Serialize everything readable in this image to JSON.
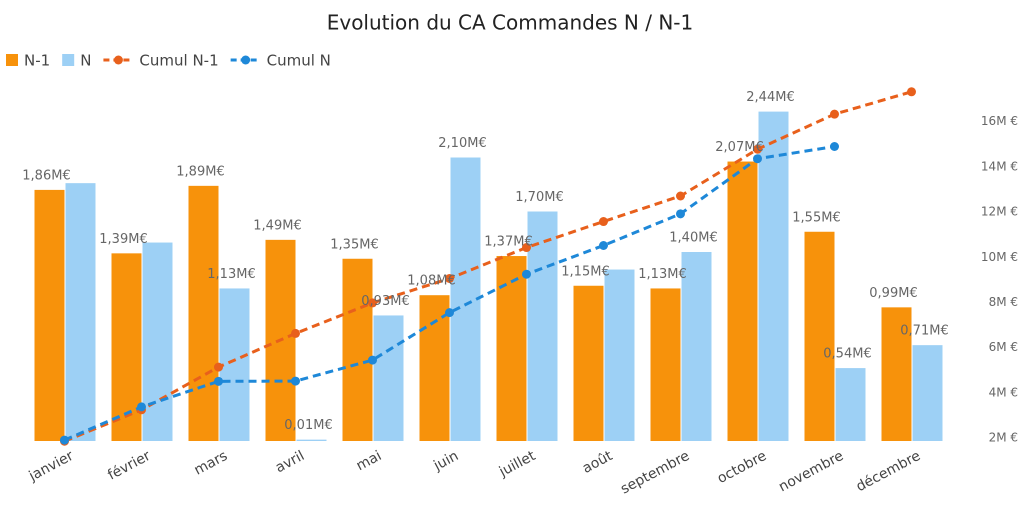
{
  "chart_data": {
    "type": "bar-line",
    "title": "Evolution du CA Commandes N / N-1",
    "categories": [
      "janvier",
      "février",
      "mars",
      "avril",
      "mai",
      "juin",
      "juillet",
      "août",
      "septembre",
      "octobre",
      "novembre",
      "décembre"
    ],
    "ylim": [
      0,
      2.6
    ],
    "y2lim": [
      1.87,
      17.4
    ],
    "y2ticks": [
      {
        "value": 2,
        "label": "2M €"
      },
      {
        "value": 4,
        "label": "4M €"
      },
      {
        "value": 6,
        "label": "6M €"
      },
      {
        "value": 8,
        "label": "8M €"
      },
      {
        "value": 10,
        "label": "10M €"
      },
      {
        "value": 12,
        "label": "12M €"
      },
      {
        "value": 14,
        "label": "14M €"
      },
      {
        "value": 16,
        "label": "16M €"
      }
    ],
    "series": [
      {
        "name": "N-1",
        "type": "bar",
        "color": "#f7920b",
        "values": [
          1.86,
          1.39,
          1.89,
          1.49,
          1.35,
          1.08,
          1.37,
          1.15,
          1.13,
          2.07,
          1.55,
          0.99
        ],
        "value_labels": [
          "1,86M€",
          "1,39M€",
          "1,89M€",
          "1,49M€",
          "1,35M€",
          "1,08M€",
          "1,37M€",
          "1,15M€",
          "1,13M€",
          "2,07M€",
          "1,55M€",
          "0,99M€"
        ]
      },
      {
        "name": "N",
        "type": "bar",
        "color": "#9dd0f5",
        "values": [
          1.91,
          1.47,
          1.13,
          0.01,
          0.93,
          2.1,
          1.7,
          1.27,
          1.4,
          2.44,
          0.54,
          0.71
        ],
        "value_labels": [
          null,
          null,
          "1,13M€",
          "0,01M€",
          "0,93M€",
          "2,10M€",
          "1,70M€",
          null,
          "1,40M€",
          "2,44M€",
          "0,54M€",
          "0,71M€"
        ]
      },
      {
        "name": "Cumul N-1",
        "type": "line",
        "axis": "y2",
        "color": "#e8601c",
        "values": [
          1.86,
          3.25,
          5.14,
          6.63,
          7.98,
          9.06,
          10.43,
          11.58,
          12.71,
          14.78,
          16.33,
          17.32
        ]
      },
      {
        "name": "Cumul N",
        "type": "line",
        "axis": "y2",
        "color": "#1e88d8",
        "values": [
          1.91,
          3.38,
          4.51,
          4.52,
          5.45,
          7.55,
          9.25,
          10.52,
          11.92,
          14.36,
          14.9,
          null
        ]
      }
    ]
  }
}
